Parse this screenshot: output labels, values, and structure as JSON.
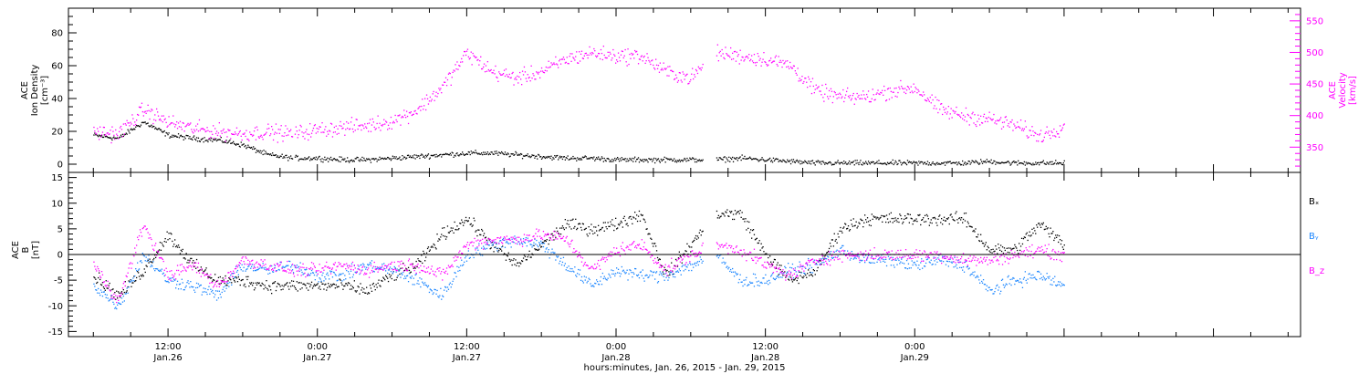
{
  "chart_data": [
    {
      "type": "scatter",
      "panel": "ion-density-velocity",
      "ylabel_left": [
        "ACE",
        "Ion Density",
        "[cm⁻³]"
      ],
      "ylabel_right": [
        "ACE",
        "Velocity",
        "[km/s]"
      ],
      "ylim_left": [
        -5,
        95
      ],
      "yticks_left": [
        0,
        20,
        40,
        60,
        80
      ],
      "ylim_right": [
        310,
        570
      ],
      "yticks_right": [
        350,
        400,
        450,
        500,
        550
      ],
      "colors": {
        "density": "#000000",
        "velocity": "#ff00ff"
      },
      "series": [
        {
          "key": "density",
          "axis": "left",
          "x_hours": [
            0,
            2,
            4,
            6,
            8,
            10,
            12,
            14,
            16,
            18,
            20,
            22,
            24,
            26,
            28,
            30,
            32,
            34,
            36,
            38,
            40,
            42,
            44,
            46,
            48,
            50,
            52,
            54,
            56,
            58,
            60,
            62,
            64,
            66,
            68,
            70,
            72,
            74,
            76,
            78
          ],
          "values": [
            18,
            16,
            26,
            18,
            16,
            15,
            12,
            6,
            4,
            4,
            3,
            3,
            4,
            5,
            6,
            7,
            7,
            6,
            5,
            4,
            4,
            3,
            3,
            3,
            3,
            3,
            4,
            3,
            2,
            1,
            1,
            1,
            1,
            1,
            1,
            1,
            2,
            1,
            1,
            1
          ]
        },
        {
          "key": "velocity",
          "axis": "right",
          "x_hours": [
            0,
            2,
            4,
            6,
            8,
            10,
            12,
            14,
            16,
            18,
            20,
            22,
            24,
            26,
            28,
            30,
            32,
            34,
            36,
            38,
            40,
            42,
            44,
            46,
            48,
            50,
            52,
            54,
            56,
            58,
            60,
            62,
            64,
            66,
            68,
            70,
            72,
            74,
            76,
            78
          ],
          "values": [
            375,
            372,
            410,
            390,
            380,
            375,
            372,
            375,
            372,
            378,
            382,
            385,
            392,
            410,
            445,
            500,
            470,
            460,
            470,
            490,
            500,
            495,
            495,
            470,
            460,
            500,
            495,
            490,
            480,
            440,
            430,
            430,
            440,
            445,
            410,
            400,
            395,
            385,
            368,
            385
          ]
        }
      ]
    },
    {
      "type": "scatter",
      "panel": "magnetic-field",
      "ylabel": [
        "ACE",
        "B",
        "[nT]"
      ],
      "ylim": [
        -16,
        16
      ],
      "yticks": [
        -15,
        -10,
        -5,
        0,
        5,
        10,
        15
      ],
      "zero_line": true,
      "legend": [
        "Bₓ",
        "Bᵧ",
        "B_z"
      ],
      "colors": {
        "bx": "#000000",
        "by": "#1a85ff",
        "bz": "#ff00ff"
      },
      "series": [
        {
          "key": "bx",
          "x_hours": [
            0,
            2,
            4,
            6,
            8,
            10,
            12,
            14,
            16,
            18,
            20,
            22,
            24,
            26,
            28,
            30,
            32,
            34,
            36,
            38,
            40,
            42,
            44,
            46,
            48,
            50,
            52,
            54,
            56,
            58,
            60,
            62,
            64,
            66,
            68,
            70,
            72,
            74,
            76,
            78
          ],
          "values": [
            -4,
            -8,
            -3,
            4,
            -2,
            -5,
            -5,
            -6,
            -6,
            -6,
            -6,
            -7,
            -4,
            -2,
            4,
            7,
            2,
            -2,
            2,
            6,
            5,
            6,
            8,
            -4,
            2,
            8,
            8,
            0,
            -5,
            -3,
            5,
            7,
            7,
            7,
            7,
            7,
            1,
            1,
            6,
            2
          ]
        },
        {
          "key": "by",
          "x_hours": [
            0,
            2,
            4,
            6,
            8,
            10,
            12,
            14,
            16,
            18,
            20,
            22,
            24,
            26,
            28,
            30,
            32,
            34,
            36,
            38,
            40,
            42,
            44,
            46,
            48,
            50,
            52,
            54,
            56,
            58,
            60,
            62,
            64,
            66,
            68,
            70,
            72,
            74,
            76,
            78
          ],
          "values": [
            -6,
            -10,
            0,
            -5,
            -6,
            -8,
            -2,
            -3,
            -2,
            -4,
            -4,
            -2,
            -3,
            -5,
            -8,
            0,
            2,
            3,
            2,
            -2,
            -6,
            -3,
            -4,
            -4,
            -2,
            0,
            -5,
            -5,
            -3,
            -2,
            1,
            -1,
            -1,
            -2,
            -1,
            -2,
            -7,
            -5,
            -4,
            -6
          ]
        },
        {
          "key": "bz",
          "x_hours": [
            0,
            2,
            4,
            6,
            8,
            10,
            12,
            14,
            16,
            18,
            20,
            22,
            24,
            26,
            28,
            30,
            32,
            34,
            36,
            38,
            40,
            42,
            44,
            46,
            48,
            50,
            52,
            54,
            56,
            58,
            60,
            62,
            64,
            66,
            68,
            70,
            72,
            74,
            76,
            78
          ],
          "values": [
            -2,
            -9,
            6,
            -4,
            -2,
            -6,
            -1,
            -2,
            -3,
            -3,
            -2,
            -3,
            -2,
            -2,
            -4,
            2,
            3,
            3,
            4,
            3,
            -3,
            1,
            2,
            -3,
            0,
            2,
            1,
            -2,
            -4,
            -1,
            0,
            0,
            0,
            0,
            0,
            -1,
            -1,
            0,
            1,
            0
          ]
        }
      ]
    }
  ],
  "axes": {
    "x_range_hours": [
      -2,
      97
    ],
    "x_tick_labels": [
      {
        "hours": 6,
        "time": "12:00",
        "date": "Jan.26"
      },
      {
        "hours": 18,
        "time": "0:00",
        "date": "Jan.27"
      },
      {
        "hours": 30,
        "time": "12:00",
        "date": "Jan.27"
      },
      {
        "hours": 42,
        "time": "0:00",
        "date": "Jan.28"
      },
      {
        "hours": 54,
        "time": "12:00",
        "date": "Jan.28"
      },
      {
        "hours": 66,
        "time": "0:00",
        "date": "Jan.29"
      }
    ],
    "xlabel": "hours:minutes, Jan. 26, 2015 - Jan. 29, 2015"
  }
}
